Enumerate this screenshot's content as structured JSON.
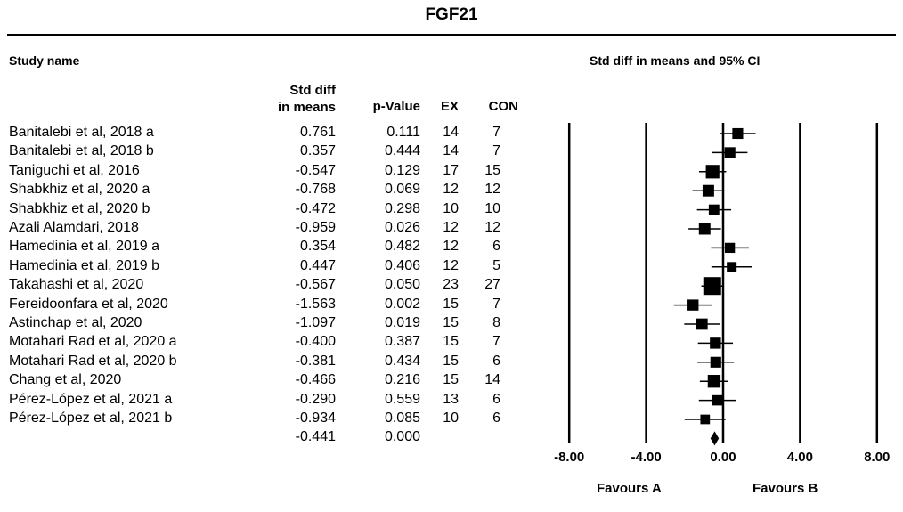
{
  "title": "FGF21",
  "headers": {
    "study_name": "Study name",
    "ci_title": "Std diff in means and 95% CI",
    "std_diff_line1": "Std diff",
    "std_diff_line2": "in means",
    "p_value": "p-Value",
    "ex": "EX",
    "con": "CON"
  },
  "favours": {
    "a": "Favours A",
    "b": "Favours B"
  },
  "chart_data": {
    "type": "forest",
    "title": "FGF21",
    "x_ticks": [
      "-8.00",
      "-4.00",
      "0.00",
      "4.00",
      "8.00"
    ],
    "xlim": [
      -8,
      8
    ],
    "studies": [
      {
        "name": "Banitalebi et al, 2018 a",
        "std_diff": "0.761",
        "p": "0.111",
        "ex": "14",
        "con": "7",
        "est": 0.761,
        "lo": -0.17,
        "hi": 1.69
      },
      {
        "name": "Banitalebi et al, 2018 b",
        "std_diff": "0.357",
        "p": "0.444",
        "ex": "14",
        "con": "7",
        "est": 0.357,
        "lo": -0.56,
        "hi": 1.27
      },
      {
        "name": "Taniguchi et al, 2016",
        "std_diff": "-0.547",
        "p": "0.129",
        "ex": "17",
        "con": "15",
        "est": -0.547,
        "lo": -1.25,
        "hi": 0.16
      },
      {
        "name": "Shabkhiz et al, 2020 a",
        "std_diff": "-0.768",
        "p": "0.069",
        "ex": "12",
        "con": "12",
        "est": -0.768,
        "lo": -1.6,
        "hi": 0.06
      },
      {
        "name": "Shabkhiz et al, 2020 b",
        "std_diff": "-0.472",
        "p": "0.298",
        "ex": "10",
        "con": "10",
        "est": -0.472,
        "lo": -1.36,
        "hi": 0.42
      },
      {
        "name": "Azali Alamdari, 2018",
        "std_diff": "-0.959",
        "p": "0.026",
        "ex": "12",
        "con": "12",
        "est": -0.959,
        "lo": -1.8,
        "hi": -0.11
      },
      {
        "name": "Hamedinia et al, 2019 a",
        "std_diff": "0.354",
        "p": "0.482",
        "ex": "12",
        "con": "6",
        "est": 0.354,
        "lo": -0.63,
        "hi": 1.34
      },
      {
        "name": "Hamedinia et al, 2019 b",
        "std_diff": "0.447",
        "p": "0.406",
        "ex": "12",
        "con": "5",
        "est": 0.447,
        "lo": -0.61,
        "hi": 1.5
      },
      {
        "name": "Takahashi et al, 2020",
        "std_diff": "-0.567",
        "p": "0.050",
        "ex": "23",
        "con": "27",
        "est": -0.567,
        "lo": -1.13,
        "hi": 0.0
      },
      {
        "name": "Fereidoonfara et al, 2020",
        "std_diff": "-1.563",
        "p": "0.002",
        "ex": "15",
        "con": "7",
        "est": -1.563,
        "lo": -2.56,
        "hi": -0.57
      },
      {
        "name": "Astinchap et al, 2020",
        "std_diff": "-1.097",
        "p": "0.019",
        "ex": "15",
        "con": "8",
        "est": -1.097,
        "lo": -2.02,
        "hi": -0.18
      },
      {
        "name": "Motahari Rad et al, 2020 a",
        "std_diff": "-0.400",
        "p": "0.387",
        "ex": "15",
        "con": "7",
        "est": -0.4,
        "lo": -1.31,
        "hi": 0.51
      },
      {
        "name": "Motahari Rad et al, 2020 b",
        "std_diff": "-0.381",
        "p": "0.434",
        "ex": "15",
        "con": "6",
        "est": -0.381,
        "lo": -1.34,
        "hi": 0.57
      },
      {
        "name": "Chang et al, 2020",
        "std_diff": "-0.466",
        "p": "0.216",
        "ex": "15",
        "con": "14",
        "est": -0.466,
        "lo": -1.21,
        "hi": 0.27
      },
      {
        "name": "Pérez-López et al, 2021 a",
        "std_diff": "-0.290",
        "p": "0.559",
        "ex": "13",
        "con": "6",
        "est": -0.29,
        "lo": -1.26,
        "hi": 0.68
      },
      {
        "name": "Pérez-López et al, 2021 b",
        "std_diff": "-0.934",
        "p": "0.085",
        "ex": "10",
        "con": "6",
        "est": -0.934,
        "lo": -2.0,
        "hi": 0.13
      }
    ],
    "summary": {
      "std_diff": "-0.441",
      "p": "0.000",
      "est": -0.441,
      "lo": -0.66,
      "hi": -0.22
    }
  }
}
